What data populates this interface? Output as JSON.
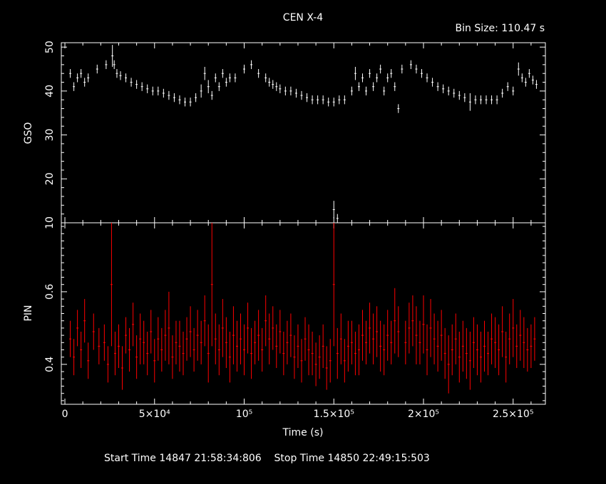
{
  "title": "CEN X-4",
  "bin_size_text": "Bin Size: 110.47 s",
  "xlabel": "Time (s)",
  "footer": {
    "start_label": "Start Time",
    "start_value": "14847 21:58:34:806",
    "stop_label": "Stop Time",
    "stop_value": "14850 22:49:15:503"
  },
  "colors": {
    "background": "#000000",
    "axes": "#ffffff",
    "gso": "#ffffff",
    "pin": "#ff0000"
  },
  "chart_data": [
    {
      "type": "scatter",
      "panel": "top",
      "ylabel": "GSO",
      "xlim": [
        -2000,
        268000
      ],
      "ylim": [
        10,
        51
      ],
      "x_ticks": [
        0,
        50000,
        100000,
        150000,
        200000,
        250000
      ],
      "y_ticks": [
        10,
        20,
        30,
        40,
        50
      ],
      "y_tick_labels": [
        "10",
        "20",
        "30",
        "40",
        "50"
      ],
      "error_bars": true,
      "series": [
        {
          "x": [
            3000,
            5000,
            7000,
            9000,
            11000,
            13000,
            18000,
            23000,
            26500,
            27500,
            29000,
            31000,
            34000,
            37000,
            40000,
            43000,
            46000,
            49000,
            52000,
            55000,
            58000,
            61000,
            64000,
            67000,
            70000,
            73000,
            76000,
            78000,
            80000,
            82000,
            84000,
            86000,
            88000,
            90000,
            92000,
            95000,
            100000,
            104000,
            108000,
            112000,
            114000,
            116000,
            118000,
            120000,
            123000,
            126000,
            129000,
            132000,
            135000,
            138000,
            141000,
            144000,
            147000,
            150000,
            153000,
            156000,
            160000,
            162000,
            164000,
            166000,
            168000,
            170000,
            172000,
            174000,
            176000,
            178000,
            180000,
            182000,
            184000,
            186000,
            188000,
            193000,
            196000,
            199000,
            202000,
            205000,
            208000,
            211000,
            214000,
            217000,
            220000,
            223000,
            226000,
            229000,
            232000,
            235000,
            238000,
            241000,
            244000,
            247000,
            250000,
            253000,
            255000,
            257000,
            259000,
            261000,
            263000
          ],
          "y": [
            44,
            41,
            43,
            44,
            42,
            43,
            45,
            46,
            48,
            46,
            44,
            43.5,
            43,
            42,
            41.5,
            41,
            40.5,
            40,
            40,
            39.5,
            39,
            38.5,
            38,
            37.5,
            37.5,
            38.5,
            40,
            44,
            41,
            39,
            43,
            41,
            44,
            42,
            43,
            43,
            45,
            46,
            44,
            43,
            42,
            41.5,
            41,
            40.5,
            40,
            40,
            39.5,
            39,
            38.5,
            38,
            38,
            38,
            37.5,
            37.5,
            38,
            38,
            40,
            44,
            41,
            43,
            40,
            44,
            41,
            43,
            45,
            40,
            43,
            44,
            41,
            36,
            45,
            46,
            45,
            44,
            43,
            42,
            41,
            40.5,
            40,
            39.5,
            39,
            38.5,
            37.5,
            38,
            38,
            38,
            38,
            38,
            39.5,
            41,
            40,
            45,
            43,
            42,
            44,
            42.5,
            41.5
          ],
          "y_err": [
            1,
            1,
            1,
            1,
            1,
            1,
            1,
            1,
            2.5,
            1,
            1,
            1,
            1,
            1,
            1,
            1,
            1,
            1,
            1,
            1,
            1,
            1,
            1,
            1,
            1,
            1,
            1.5,
            1.5,
            1.5,
            1,
            1,
            1,
            1,
            1,
            1,
            1,
            1,
            1,
            1,
            1,
            1,
            1,
            1,
            1,
            1,
            1,
            1,
            1,
            1,
            1,
            1,
            1,
            1,
            1,
            1,
            1,
            1,
            1.5,
            1,
            1,
            1,
            1,
            1,
            1,
            1,
            1,
            1,
            1,
            1,
            1,
            1,
            1,
            1,
            1,
            1,
            1,
            1,
            1,
            1,
            1,
            1,
            1,
            2,
            1,
            1,
            1,
            1,
            1,
            1,
            1,
            1,
            1.5,
            1,
            1,
            1,
            1,
            1
          ]
        },
        {
          "x": [
            150000,
            152000
          ],
          "y": [
            13,
            11
          ],
          "y_err": [
            2,
            1
          ]
        }
      ]
    },
    {
      "type": "scatter",
      "panel": "bottom",
      "ylabel": "PIN",
      "xlim": [
        -2000,
        268000
      ],
      "ylim": [
        0.29,
        0.79
      ],
      "x_ticks": [
        0,
        50000,
        100000,
        150000,
        200000,
        250000
      ],
      "x_tick_labels": [
        "0",
        "5×10⁴",
        "10⁵",
        "1.5×10⁵",
        "2×10⁵",
        "2.5×10⁵"
      ],
      "y_ticks": [
        0.4,
        0.6
      ],
      "y_tick_labels": [
        "0.4",
        "0.6"
      ],
      "error_bars": true,
      "series": [
        {
          "x": [
            3000,
            5000,
            7000,
            9000,
            11000,
            13000,
            16000,
            19000,
            22000,
            24000,
            26000,
            28000,
            30000,
            32000,
            34000,
            36000,
            38000,
            40000,
            42000,
            44000,
            46000,
            48000,
            50000,
            52000,
            54000,
            56000,
            58000,
            60000,
            62000,
            64000,
            66000,
            68000,
            70000,
            72000,
            74000,
            76000,
            78000,
            80000,
            82000,
            84000,
            86000,
            88000,
            90000,
            92000,
            94000,
            96000,
            98000,
            100000,
            102000,
            104000,
            106000,
            108000,
            110000,
            112000,
            114000,
            116000,
            118000,
            120000,
            122000,
            124000,
            126000,
            128000,
            130000,
            132000,
            134000,
            136000,
            138000,
            140000,
            142000,
            144000,
            146000,
            148000,
            150000,
            152000,
            154000,
            156000,
            158000,
            160000,
            162000,
            164000,
            166000,
            168000,
            170000,
            172000,
            174000,
            176000,
            178000,
            180000,
            182000,
            184000,
            186000,
            190000,
            192000,
            194000,
            196000,
            198000,
            200000,
            202000,
            204000,
            206000,
            208000,
            210000,
            212000,
            214000,
            216000,
            218000,
            220000,
            222000,
            224000,
            226000,
            228000,
            230000,
            232000,
            234000,
            236000,
            238000,
            240000,
            242000,
            244000,
            246000,
            248000,
            250000,
            252000,
            254000,
            256000,
            258000,
            260000,
            262000
          ],
          "y": [
            0.47,
            0.42,
            0.5,
            0.44,
            0.52,
            0.41,
            0.49,
            0.45,
            0.46,
            0.4,
            0.62,
            0.43,
            0.45,
            0.39,
            0.48,
            0.44,
            0.51,
            0.42,
            0.47,
            0.46,
            0.43,
            0.49,
            0.41,
            0.47,
            0.44,
            0.48,
            0.5,
            0.42,
            0.46,
            0.45,
            0.43,
            0.47,
            0.49,
            0.44,
            0.48,
            0.46,
            0.52,
            0.43,
            0.62,
            0.47,
            0.44,
            0.5,
            0.46,
            0.42,
            0.48,
            0.45,
            0.47,
            0.44,
            0.5,
            0.43,
            0.46,
            0.48,
            0.44,
            0.52,
            0.47,
            0.5,
            0.45,
            0.49,
            0.43,
            0.46,
            0.48,
            0.42,
            0.45,
            0.41,
            0.47,
            0.44,
            0.43,
            0.4,
            0.42,
            0.45,
            0.39,
            0.41,
            0.62,
            0.43,
            0.47,
            0.41,
            0.45,
            0.46,
            0.43,
            0.44,
            0.48,
            0.46,
            0.5,
            0.47,
            0.49,
            0.45,
            0.44,
            0.48,
            0.46,
            0.52,
            0.49,
            0.46,
            0.5,
            0.52,
            0.48,
            0.46,
            0.51,
            0.44,
            0.5,
            0.47,
            0.45,
            0.48,
            0.43,
            0.4,
            0.44,
            0.47,
            0.42,
            0.45,
            0.43,
            0.41,
            0.46,
            0.44,
            0.42,
            0.45,
            0.43,
            0.47,
            0.46,
            0.44,
            0.49,
            0.42,
            0.47,
            0.5,
            0.45,
            0.48,
            0.46,
            0.44,
            0.45,
            0.47
          ],
          "y_err": [
            0.05,
            0.05,
            0.05,
            0.05,
            0.06,
            0.05,
            0.05,
            0.05,
            0.05,
            0.05,
            0.17,
            0.06,
            0.06,
            0.06,
            0.05,
            0.06,
            0.06,
            0.06,
            0.07,
            0.06,
            0.06,
            0.06,
            0.06,
            0.06,
            0.06,
            0.07,
            0.1,
            0.06,
            0.06,
            0.07,
            0.06,
            0.06,
            0.07,
            0.06,
            0.07,
            0.06,
            0.07,
            0.08,
            0.17,
            0.07,
            0.07,
            0.08,
            0.07,
            0.07,
            0.08,
            0.07,
            0.07,
            0.07,
            0.07,
            0.07,
            0.06,
            0.07,
            0.06,
            0.07,
            0.07,
            0.06,
            0.06,
            0.06,
            0.06,
            0.06,
            0.06,
            0.06,
            0.06,
            0.06,
            0.06,
            0.07,
            0.06,
            0.06,
            0.06,
            0.06,
            0.06,
            0.06,
            0.17,
            0.07,
            0.07,
            0.06,
            0.07,
            0.06,
            0.06,
            0.07,
            0.07,
            0.06,
            0.07,
            0.07,
            0.07,
            0.07,
            0.07,
            0.07,
            0.06,
            0.09,
            0.07,
            0.06,
            0.07,
            0.07,
            0.08,
            0.06,
            0.08,
            0.07,
            0.08,
            0.07,
            0.07,
            0.07,
            0.07,
            0.08,
            0.07,
            0.07,
            0.07,
            0.07,
            0.07,
            0.08,
            0.07,
            0.07,
            0.07,
            0.07,
            0.06,
            0.07,
            0.07,
            0.07,
            0.07,
            0.07,
            0.07,
            0.08,
            0.06,
            0.07,
            0.07,
            0.06,
            0.06,
            0.06
          ]
        }
      ]
    }
  ]
}
